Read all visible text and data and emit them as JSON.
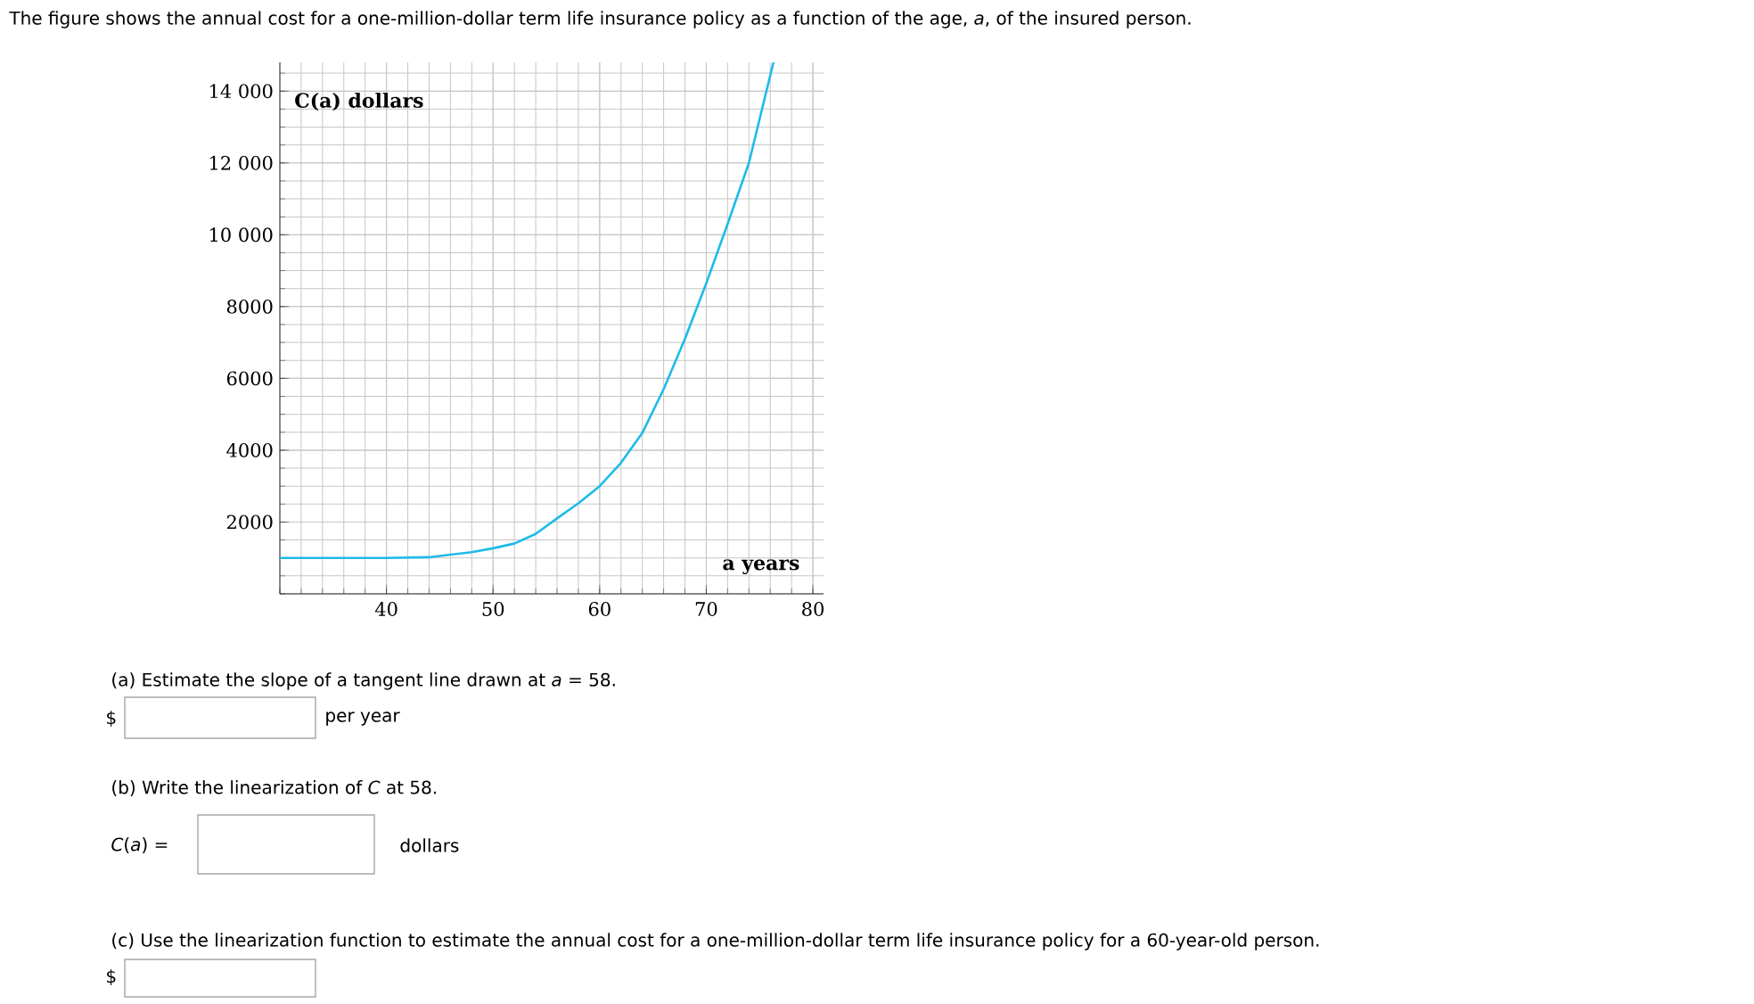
{
  "chart_data": {
    "type": "line",
    "title": "The figure shows the annual cost for a one-million-dollar term life insurance policy as a function of the age, *a*, of the insured person.",
    "xlabel": "a years",
    "ylabel": "C(a) dollars",
    "xlim": [
      30,
      81
    ],
    "ylim": [
      0,
      14800
    ],
    "xticks": [
      40,
      50,
      60,
      70,
      80
    ],
    "yticks": [
      2000,
      4000,
      6000,
      8000,
      {
        "value": 10000,
        "label": "10 000"
      },
      {
        "value": 12000,
        "label": "12 000"
      },
      {
        "value": 14000,
        "label": "14 000"
      }
    ],
    "grid": true,
    "marker": "none",
    "line_style": "solid",
    "x": [
      30,
      40,
      44,
      48,
      50,
      52,
      54,
      56,
      58,
      60,
      62,
      64,
      66,
      68,
      70,
      72,
      74,
      76.3
    ],
    "series": [
      {
        "color": "#1ebbe8",
        "values": [
          1000,
          1000,
          1020,
          1160,
          1270,
          1400,
          1670,
          2100,
          2520,
          3000,
          3650,
          4480,
          5700,
          7100,
          8650,
          10300,
          12000,
          14800
        ]
      }
    ],
    "annotations": [
      "(a) Estimate the slope of a tangent line drawn at *a* = 58.",
      "$",
      "per year",
      "(b) Write the linearization of *C* at 58.",
      "*C*(*a*) =",
      "dollars",
      "(c) Use the linearization function to estimate the annual cost for a one-million-dollar term life insurance policy for a 60-year-old person.",
      "$"
    ]
  }
}
